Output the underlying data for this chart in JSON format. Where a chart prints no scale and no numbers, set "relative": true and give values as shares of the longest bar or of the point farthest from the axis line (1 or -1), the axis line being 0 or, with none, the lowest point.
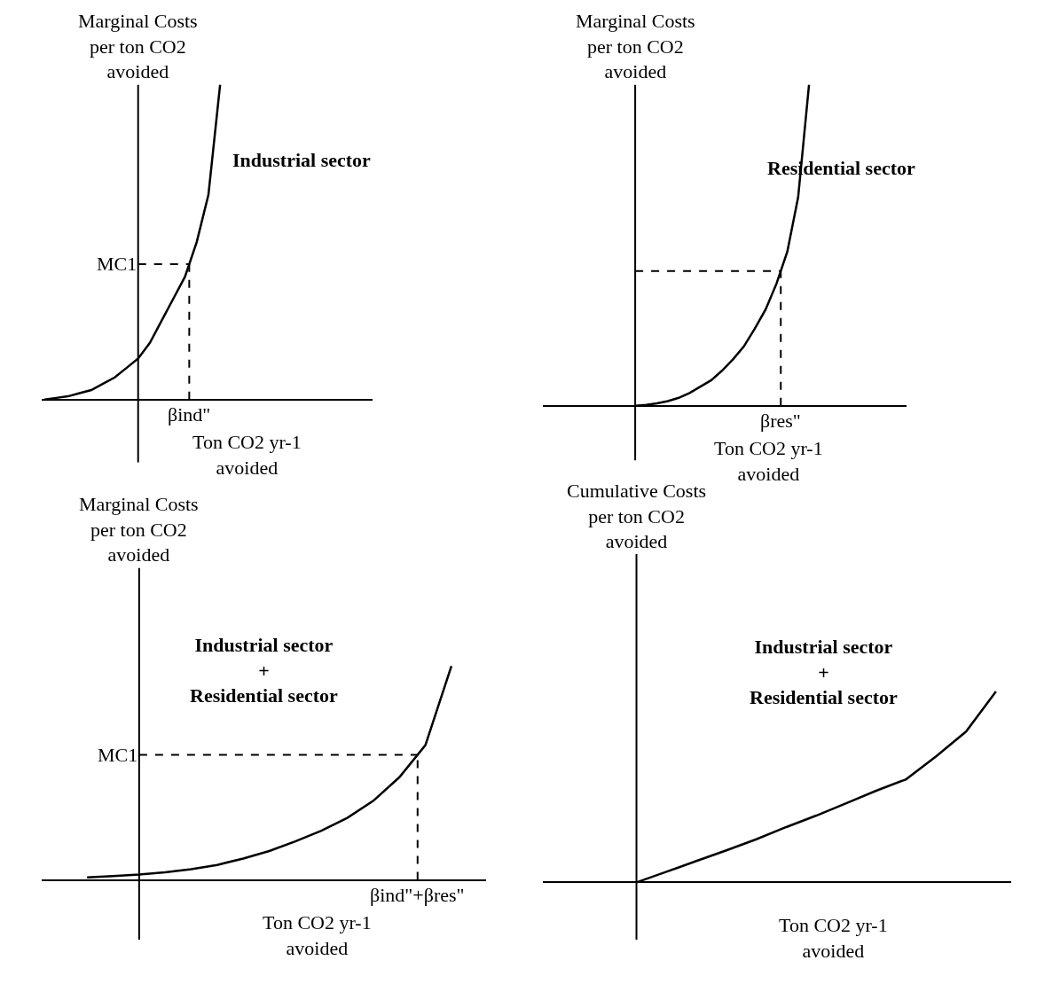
{
  "chart_data": [
    {
      "type": "line",
      "title": "Industrial sector",
      "ylabel": "Marginal Costs\nper ton CO2\navoided",
      "xlabel": "Ton CO2 yr-1\navoided",
      "relative": true,
      "line_style": "solid",
      "categories": [
        null,
        null,
        null,
        null,
        null,
        null,
        null,
        null,
        null,
        null,
        null,
        null,
        null,
        null,
        null,
        null
      ],
      "series": [
        {
          "color": "#000000",
          "values": [
            0,
            0.005,
            0.01,
            0.02,
            0.03,
            0.05,
            0.07,
            0.1,
            0.13,
            0.18,
            0.25,
            0.32,
            0.39,
            0.5,
            0.65,
            1
          ]
        }
      ],
      "ref_lines": [
        {
          "axis": "y",
          "value": 0.43,
          "label": "MC1",
          "line_style": "dashed"
        }
      ],
      "annotations": [
        "βind\""
      ]
    },
    {
      "type": "line",
      "title": "Residential sector",
      "ylabel": "Marginal Costs\nper ton CO2\navoided",
      "xlabel": "Ton CO2 yr-1\navoided",
      "relative": true,
      "line_style": "solid",
      "categories": [
        null,
        null,
        null,
        null,
        null,
        null,
        null,
        null,
        null,
        null,
        null,
        null,
        null,
        null,
        null,
        null,
        null
      ],
      "series": [
        {
          "color": "#000000",
          "values": [
            0,
            0.003,
            0.008,
            0.015,
            0.025,
            0.04,
            0.06,
            0.08,
            0.11,
            0.145,
            0.185,
            0.24,
            0.3,
            0.38,
            0.48,
            0.65,
            1
          ]
        }
      ],
      "ref_lines": [
        {
          "axis": "y",
          "value": 0.42,
          "line_style": "dashed"
        }
      ],
      "annotations": [
        "βres\""
      ]
    },
    {
      "type": "line",
      "title": "Industrial sector\n+\nResidential sector",
      "ylabel": "Marginal Costs\nper ton CO2\navoided",
      "xlabel": "Ton CO2 yr-1\navoided",
      "relative": true,
      "line_style": "solid",
      "categories": [
        null,
        null,
        null,
        null,
        null,
        null,
        null,
        null,
        null,
        null,
        null,
        null,
        null,
        null,
        null
      ],
      "series": [
        {
          "color": "#000000",
          "values": [
            0.012,
            0.018,
            0.025,
            0.035,
            0.05,
            0.07,
            0.1,
            0.135,
            0.18,
            0.23,
            0.29,
            0.37,
            0.48,
            0.63,
            1
          ]
        }
      ],
      "ref_lines": [
        {
          "axis": "y",
          "value": 0.585,
          "label": "MC1",
          "line_style": "dashed"
        }
      ],
      "annotations": [
        "βind\"+βres\""
      ]
    },
    {
      "type": "line",
      "title": "Industrial sector\n+\nResidential sector",
      "ylabel": "Cumulative Costs\nper ton CO2\navoided",
      "xlabel": "Ton CO2 yr-1\navoided",
      "relative": true,
      "line_style": "solid",
      "categories": [
        null,
        null,
        null,
        null,
        null,
        null,
        null,
        null,
        null,
        null,
        null,
        null,
        null
      ],
      "series": [
        {
          "color": "#000000",
          "values": [
            0,
            0.056,
            0.112,
            0.168,
            0.226,
            0.29,
            0.35,
            0.415,
            0.48,
            0.54,
            0.66,
            0.79,
            1
          ]
        }
      ]
    }
  ]
}
